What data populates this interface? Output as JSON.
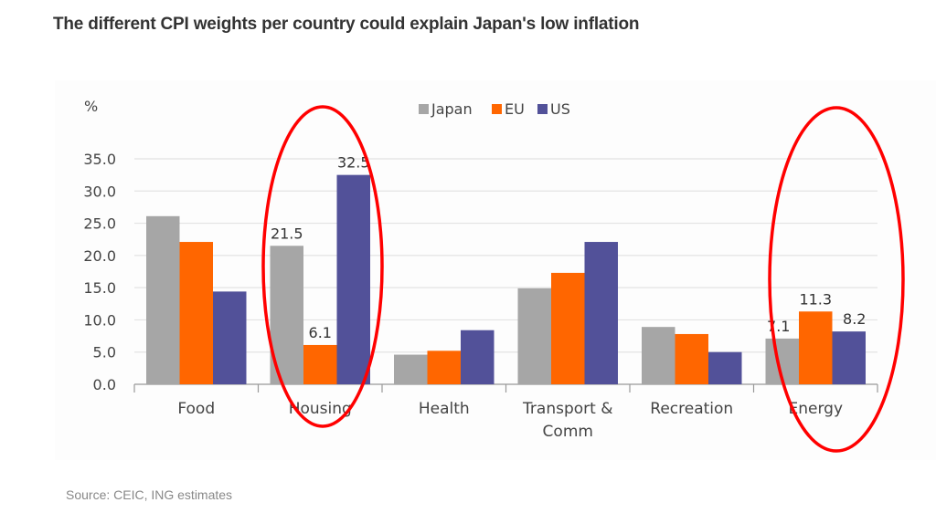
{
  "header": {
    "title": "The different CPI weights per country could explain Japan's low inflation"
  },
  "footer": {
    "source": "Source: CEIC, ING estimates"
  },
  "chart_data": {
    "type": "bar",
    "title": "The different CPI weights per country could explain Japan's low inflation",
    "ylabel": "%",
    "xlabel": "",
    "ylim": [
      0,
      35
    ],
    "yticks": [
      "0.0",
      "5.0",
      "10.0",
      "15.0",
      "20.0",
      "25.0",
      "30.0",
      "35.0"
    ],
    "grid": true,
    "legend_position": "top-center",
    "categories": [
      "Food",
      "Housing",
      "Health",
      "Transport &\nComm",
      "Recreation",
      "Energy"
    ],
    "category_lines": [
      [
        "Food"
      ],
      [
        "Housing"
      ],
      [
        "Health"
      ],
      [
        "Transport &",
        "Comm"
      ],
      [
        "Recreation"
      ],
      [
        "Energy"
      ]
    ],
    "series": [
      {
        "name": "Japan",
        "color": "#a6a6a6",
        "values": [
          26.1,
          21.5,
          4.6,
          14.9,
          8.9,
          7.1
        ]
      },
      {
        "name": "EU",
        "color": "#ff6600",
        "values": [
          22.1,
          6.1,
          5.2,
          17.3,
          7.8,
          11.3
        ]
      },
      {
        "name": "US",
        "color": "#525199",
        "values": [
          14.4,
          32.5,
          8.4,
          22.1,
          5.0,
          8.2
        ]
      }
    ],
    "data_labels": [
      {
        "category": 1,
        "series": 0,
        "text": "21.5"
      },
      {
        "category": 1,
        "series": 1,
        "text": "6.1"
      },
      {
        "category": 1,
        "series": 2,
        "text": "32.5"
      },
      {
        "category": 5,
        "series": 0,
        "text": "7.1"
      },
      {
        "category": 5,
        "series": 1,
        "text": "11.3"
      },
      {
        "category": 5,
        "series": 2,
        "text": "8.2"
      }
    ],
    "annotations": [
      {
        "type": "ellipse",
        "highlight_category": "Housing",
        "color": "#ff0000"
      },
      {
        "type": "ellipse",
        "highlight_category": "Energy",
        "color": "#ff0000"
      }
    ]
  }
}
